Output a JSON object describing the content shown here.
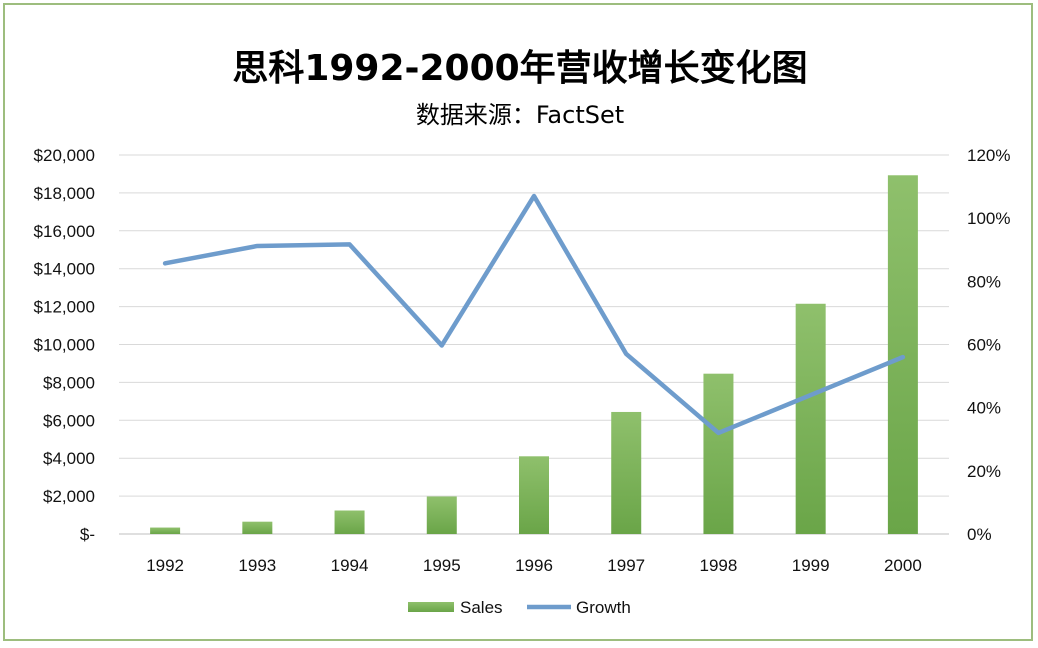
{
  "chart_data": {
    "type": "bar",
    "title": "思科1992-2000年营收增长变化图",
    "subtitle": "数据来源：FactSet",
    "categories": [
      "1992",
      "1993",
      "1994",
      "1995",
      "1996",
      "1997",
      "1998",
      "1999",
      "2000"
    ],
    "series": [
      {
        "name": "Sales",
        "type": "bar",
        "axis": "left",
        "color": "#7fb35c",
        "values": [
          340,
          650,
          1240,
          1980,
          4100,
          6440,
          8460,
          12150,
          18930
        ]
      },
      {
        "name": "Growth",
        "type": "line",
        "axis": "right",
        "color": "#6e9ccc",
        "values": [
          0.857,
          0.912,
          0.917,
          0.597,
          1.07,
          0.57,
          0.32,
          0.44,
          0.56
        ]
      }
    ],
    "y_left": {
      "min": 0,
      "max": 20000,
      "step": 2000,
      "tick_labels": [
        "$-",
        "$2,000",
        "$4,000",
        "$6,000",
        "$8,000",
        "$10,000",
        "$12,000",
        "$14,000",
        "$16,000",
        "$18,000",
        "$20,000"
      ]
    },
    "y_right": {
      "min": 0,
      "max": 1.2,
      "step": 0.2,
      "tick_labels": [
        "0%",
        "20%",
        "40%",
        "60%",
        "80%",
        "100%",
        "120%"
      ]
    },
    "grid": true,
    "legend_position": "bottom"
  }
}
